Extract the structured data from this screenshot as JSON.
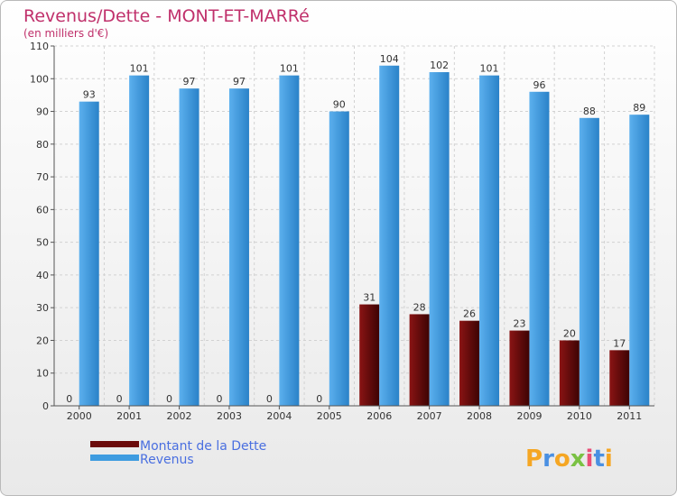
{
  "chart_data": {
    "type": "bar",
    "title": "Revenus/Dette - MONT-ET-MARRé",
    "subtitle": "(en milliers d'€)",
    "categories": [
      "2000",
      "2001",
      "2002",
      "2003",
      "2004",
      "2005",
      "2006",
      "2007",
      "2008",
      "2009",
      "2010",
      "2011"
    ],
    "series": [
      {
        "name": "Montant de la Dette",
        "color": "#6b0a0a",
        "values": [
          0,
          0,
          0,
          0,
          0,
          0,
          31,
          28,
          26,
          23,
          20,
          17
        ]
      },
      {
        "name": "Revenus",
        "color": "#3d9be0",
        "values": [
          93,
          101,
          97,
          97,
          101,
          90,
          104,
          102,
          101,
          96,
          88,
          89
        ]
      }
    ],
    "ylim": [
      0,
      110
    ],
    "yticks": [
      0,
      10,
      20,
      30,
      40,
      50,
      60,
      70,
      80,
      90,
      100,
      110
    ],
    "grid": true,
    "legend_position": "bottom-left"
  },
  "logo": {
    "letters": [
      "P",
      "r",
      "o",
      "x",
      "i",
      "t",
      "i"
    ],
    "colors": [
      "#f5a623",
      "#4a90e2",
      "#f5a623",
      "#7ac143",
      "#e94e77",
      "#4a90e2",
      "#f5a623"
    ]
  }
}
